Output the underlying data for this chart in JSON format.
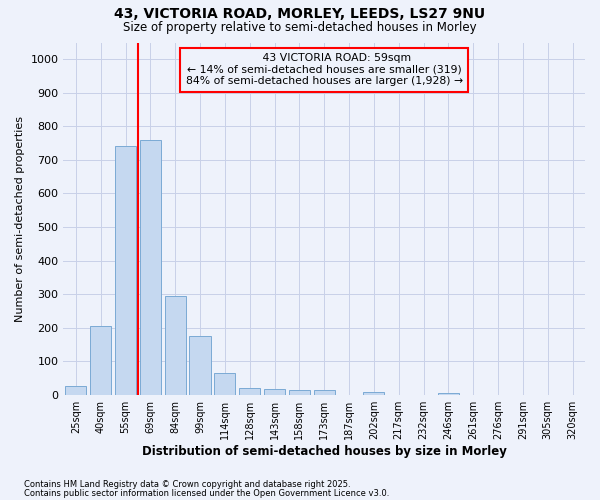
{
  "title_line1": "43, VICTORIA ROAD, MORLEY, LEEDS, LS27 9NU",
  "title_line2": "Size of property relative to semi-detached houses in Morley",
  "xlabel": "Distribution of semi-detached houses by size in Morley",
  "ylabel": "Number of semi-detached properties",
  "categories": [
    "25sqm",
    "40sqm",
    "55sqm",
    "69sqm",
    "84sqm",
    "99sqm",
    "114sqm",
    "128sqm",
    "143sqm",
    "158sqm",
    "173sqm",
    "187sqm",
    "202sqm",
    "217sqm",
    "232sqm",
    "246sqm",
    "261sqm",
    "276sqm",
    "291sqm",
    "305sqm",
    "320sqm"
  ],
  "values": [
    25,
    205,
    740,
    760,
    295,
    175,
    65,
    20,
    17,
    13,
    13,
    0,
    8,
    0,
    0,
    6,
    0,
    0,
    0,
    0,
    0
  ],
  "bar_color": "#c5d8f0",
  "bar_edge_color": "#7baad4",
  "vline_x": 2.5,
  "vline_color": "red",
  "annotation_title": "43 VICTORIA ROAD: 59sqm",
  "annotation_line1": "← 14% of semi-detached houses are smaller (319)",
  "annotation_line2": "84% of semi-detached houses are larger (1,928) →",
  "annotation_box_color": "red",
  "ylim": [
    0,
    1050
  ],
  "yticks": [
    0,
    100,
    200,
    300,
    400,
    500,
    600,
    700,
    800,
    900,
    1000
  ],
  "footer_line1": "Contains HM Land Registry data © Crown copyright and database right 2025.",
  "footer_line2": "Contains public sector information licensed under the Open Government Licence v3.0.",
  "background_color": "#eef2fb",
  "grid_color": "#c8d0e8"
}
